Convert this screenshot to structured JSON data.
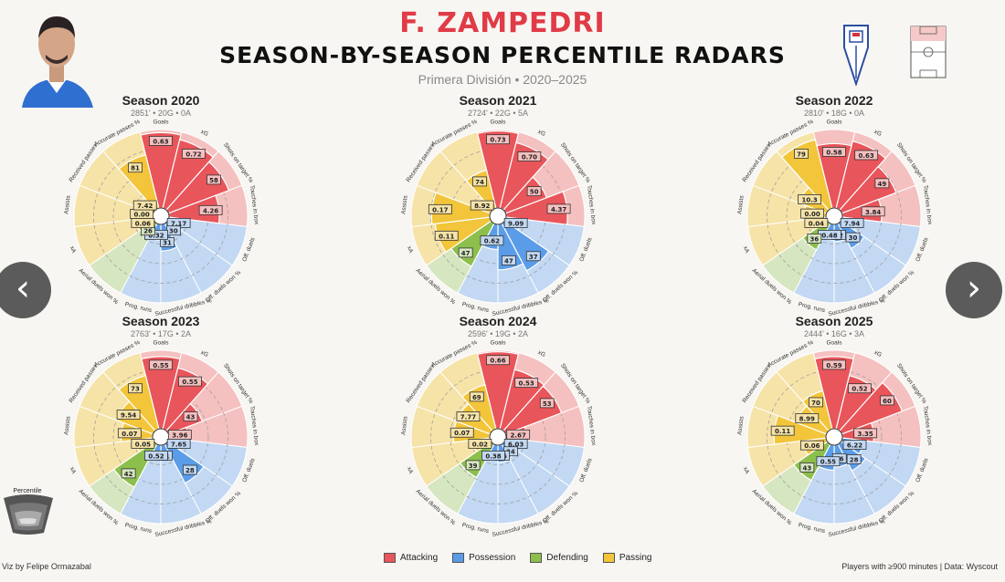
{
  "header": {
    "title": "F. ZAMPEDRI",
    "subtitle": "SEASON-BY-SEASON PERCENTILE RADARS",
    "league": "Primera División • 2020–2025"
  },
  "nav": {
    "prev_label": "‹",
    "next_label": "›"
  },
  "legend": {
    "items": [
      {
        "label": "Attacking",
        "color": "#e8555a"
      },
      {
        "label": "Possession",
        "color": "#5a9ce8"
      },
      {
        "label": "Defending",
        "color": "#8cbf4c"
      },
      {
        "label": "Passing",
        "color": "#f2c53a"
      }
    ]
  },
  "percentile_legend": {
    "title": "Percentile"
  },
  "footer": {
    "credit": "Viz by Felipe Ormazabal",
    "source": "Players with ≥900 minutes | Data: Wyscout"
  },
  "chart_data": [
    {
      "type": "radar",
      "title": "Season 2020",
      "subtitle": "2851' • 20G • 0A",
      "metrics": [
        "Goals",
        "xG",
        "Shots on target %",
        "Touches in box",
        "Off. duels",
        "Off. duels won %",
        "Successful dribbles %",
        "Prog. runs",
        "Aerial duels won %",
        "xA",
        "Assists",
        "Received passes",
        "Accurate passes %"
      ],
      "groups": [
        "Attacking",
        "Attacking",
        "Attacking",
        "Attacking",
        "Possession",
        "Possession",
        "Possession",
        "Possession",
        "Defending",
        "Passing",
        "Passing",
        "Passing",
        "Passing"
      ],
      "percentiles": [
        96,
        90,
        82,
        64,
        10,
        14,
        34,
        20,
        18,
        22,
        24,
        20,
        70
      ],
      "labels": [
        "0.63",
        "0.72",
        "58",
        "4.26",
        "7.17",
        "30",
        "31",
        "0.32",
        "26",
        "0.06",
        "0.00",
        "7.42",
        "81"
      ]
    },
    {
      "type": "radar",
      "title": "Season 2021",
      "subtitle": "2724' • 22G • 5A",
      "metrics": [
        "Goals",
        "xG",
        "Shots on target %",
        "Touches in box",
        "Off. duels",
        "Off. duels won %",
        "Successful dribbles %",
        "Prog. runs",
        "Aerial duels won %",
        "xA",
        "Assists",
        "Received passes",
        "Accurate passes %"
      ],
      "groups": [
        "Attacking",
        "Attacking",
        "Attacking",
        "Attacking",
        "Possession",
        "Possession",
        "Possession",
        "Possession",
        "Defending",
        "Passing",
        "Passing",
        "Passing",
        "Passing"
      ],
      "percentiles": [
        98,
        86,
        56,
        78,
        20,
        68,
        58,
        32,
        62,
        70,
        74,
        20,
        50
      ],
      "labels": [
        "0.73",
        "0.70",
        "50",
        "4.37",
        "9.09",
        "37",
        "47",
        "0.62",
        "47",
        "0.11",
        "0.17",
        "8.92",
        "74"
      ]
    },
    {
      "type": "radar",
      "title": "Season 2022",
      "subtitle": "2810' • 18G • 0A",
      "metrics": [
        "Goals",
        "xG",
        "Shots on target %",
        "Touches in box",
        "Off. duels",
        "Off. duels won %",
        "Successful dribbles %",
        "Prog. runs",
        "Aerial duels won %",
        "xA",
        "Assists",
        "Received passes",
        "Accurate passes %"
      ],
      "groups": [
        "Attacking",
        "Attacking",
        "Attacking",
        "Attacking",
        "Possession",
        "Possession",
        "Possession",
        "Possession",
        "Defending",
        "Passing",
        "Passing",
        "Passing",
        "Passing"
      ],
      "percentiles": [
        82,
        88,
        74,
        50,
        20,
        36,
        22,
        20,
        38,
        20,
        28,
        38,
        90
      ],
      "labels": [
        "0.58",
        "0.63",
        "49",
        "3.84",
        "7.94",
        "30",
        "42",
        "0.48",
        "36",
        "0.04",
        "0.00",
        "10.3",
        "79"
      ]
    },
    {
      "type": "radar",
      "title": "Season 2023",
      "subtitle": "2763' • 17G • 2A",
      "metrics": [
        "Goals",
        "xG",
        "Shots on target %",
        "Touches in box",
        "Off. duels",
        "Off. duels won %",
        "Successful dribbles %",
        "Prog. runs",
        "Aerial duels won %",
        "xA",
        "Assists",
        "Received passes",
        "Accurate passes %"
      ],
      "groups": [
        "Attacking",
        "Attacking",
        "Attacking",
        "Attacking",
        "Possession",
        "Possession",
        "Possession",
        "Possession",
        "Defending",
        "Passing",
        "Passing",
        "Passing",
        "Passing"
      ],
      "percentiles": [
        92,
        80,
        46,
        24,
        14,
        56,
        18,
        14,
        62,
        22,
        40,
        50,
        70
      ],
      "labels": [
        "0.55",
        "0.55",
        "43",
        "3.96",
        "7.65",
        "28",
        "31",
        "0.52",
        "42",
        "0.05",
        "0.07",
        "9.54",
        "73"
      ]
    },
    {
      "type": "radar",
      "title": "Season 2024",
      "subtitle": "2596' • 19G • 2A",
      "metrics": [
        "Goals",
        "xG",
        "Shots on target %",
        "Touches in box",
        "Off. duels",
        "Off. duels won %",
        "Successful dribbles %",
        "Prog. runs",
        "Aerial duels won %",
        "xA",
        "Assists",
        "Received passes",
        "Accurate passes %"
      ],
      "groups": [
        "Attacking",
        "Attacking",
        "Attacking",
        "Attacking",
        "Possession",
        "Possession",
        "Possession",
        "Possession",
        "Defending",
        "Passing",
        "Passing",
        "Passing",
        "Passing"
      ],
      "percentiles": [
        98,
        78,
        76,
        26,
        18,
        20,
        22,
        18,
        48,
        22,
        46,
        46,
        58
      ],
      "labels": [
        "0.66",
        "0.53",
        "53",
        "2.67",
        "6.03",
        "24",
        "26",
        "0.38",
        "39",
        "0.02",
        "0.07",
        "7.77",
        "69"
      ]
    },
    {
      "type": "radar",
      "title": "Season 2025",
      "subtitle": "2444' • 16G • 3A",
      "metrics": [
        "Goals",
        "xG",
        "Shots on target %",
        "Touches in box",
        "Off. duels",
        "Off. duels won %",
        "Successful dribbles %",
        "Prog. runs",
        "Aerial duels won %",
        "xA",
        "Assists",
        "Received passes",
        "Accurate passes %"
      ],
      "groups": [
        "Attacking",
        "Attacking",
        "Attacking",
        "Attacking",
        "Possession",
        "Possession",
        "Possession",
        "Possession",
        "Defending",
        "Passing",
        "Passing",
        "Passing",
        "Passing"
      ],
      "percentiles": [
        92,
        70,
        82,
        40,
        28,
        38,
        28,
        32,
        52,
        30,
        66,
        42,
        50
      ],
      "labels": [
        "0.59",
        "0.52",
        "60",
        "3.35",
        "6.22",
        "28",
        "36",
        "0.55",
        "43",
        "0.06",
        "0.11",
        "8.99",
        "70"
      ]
    }
  ]
}
